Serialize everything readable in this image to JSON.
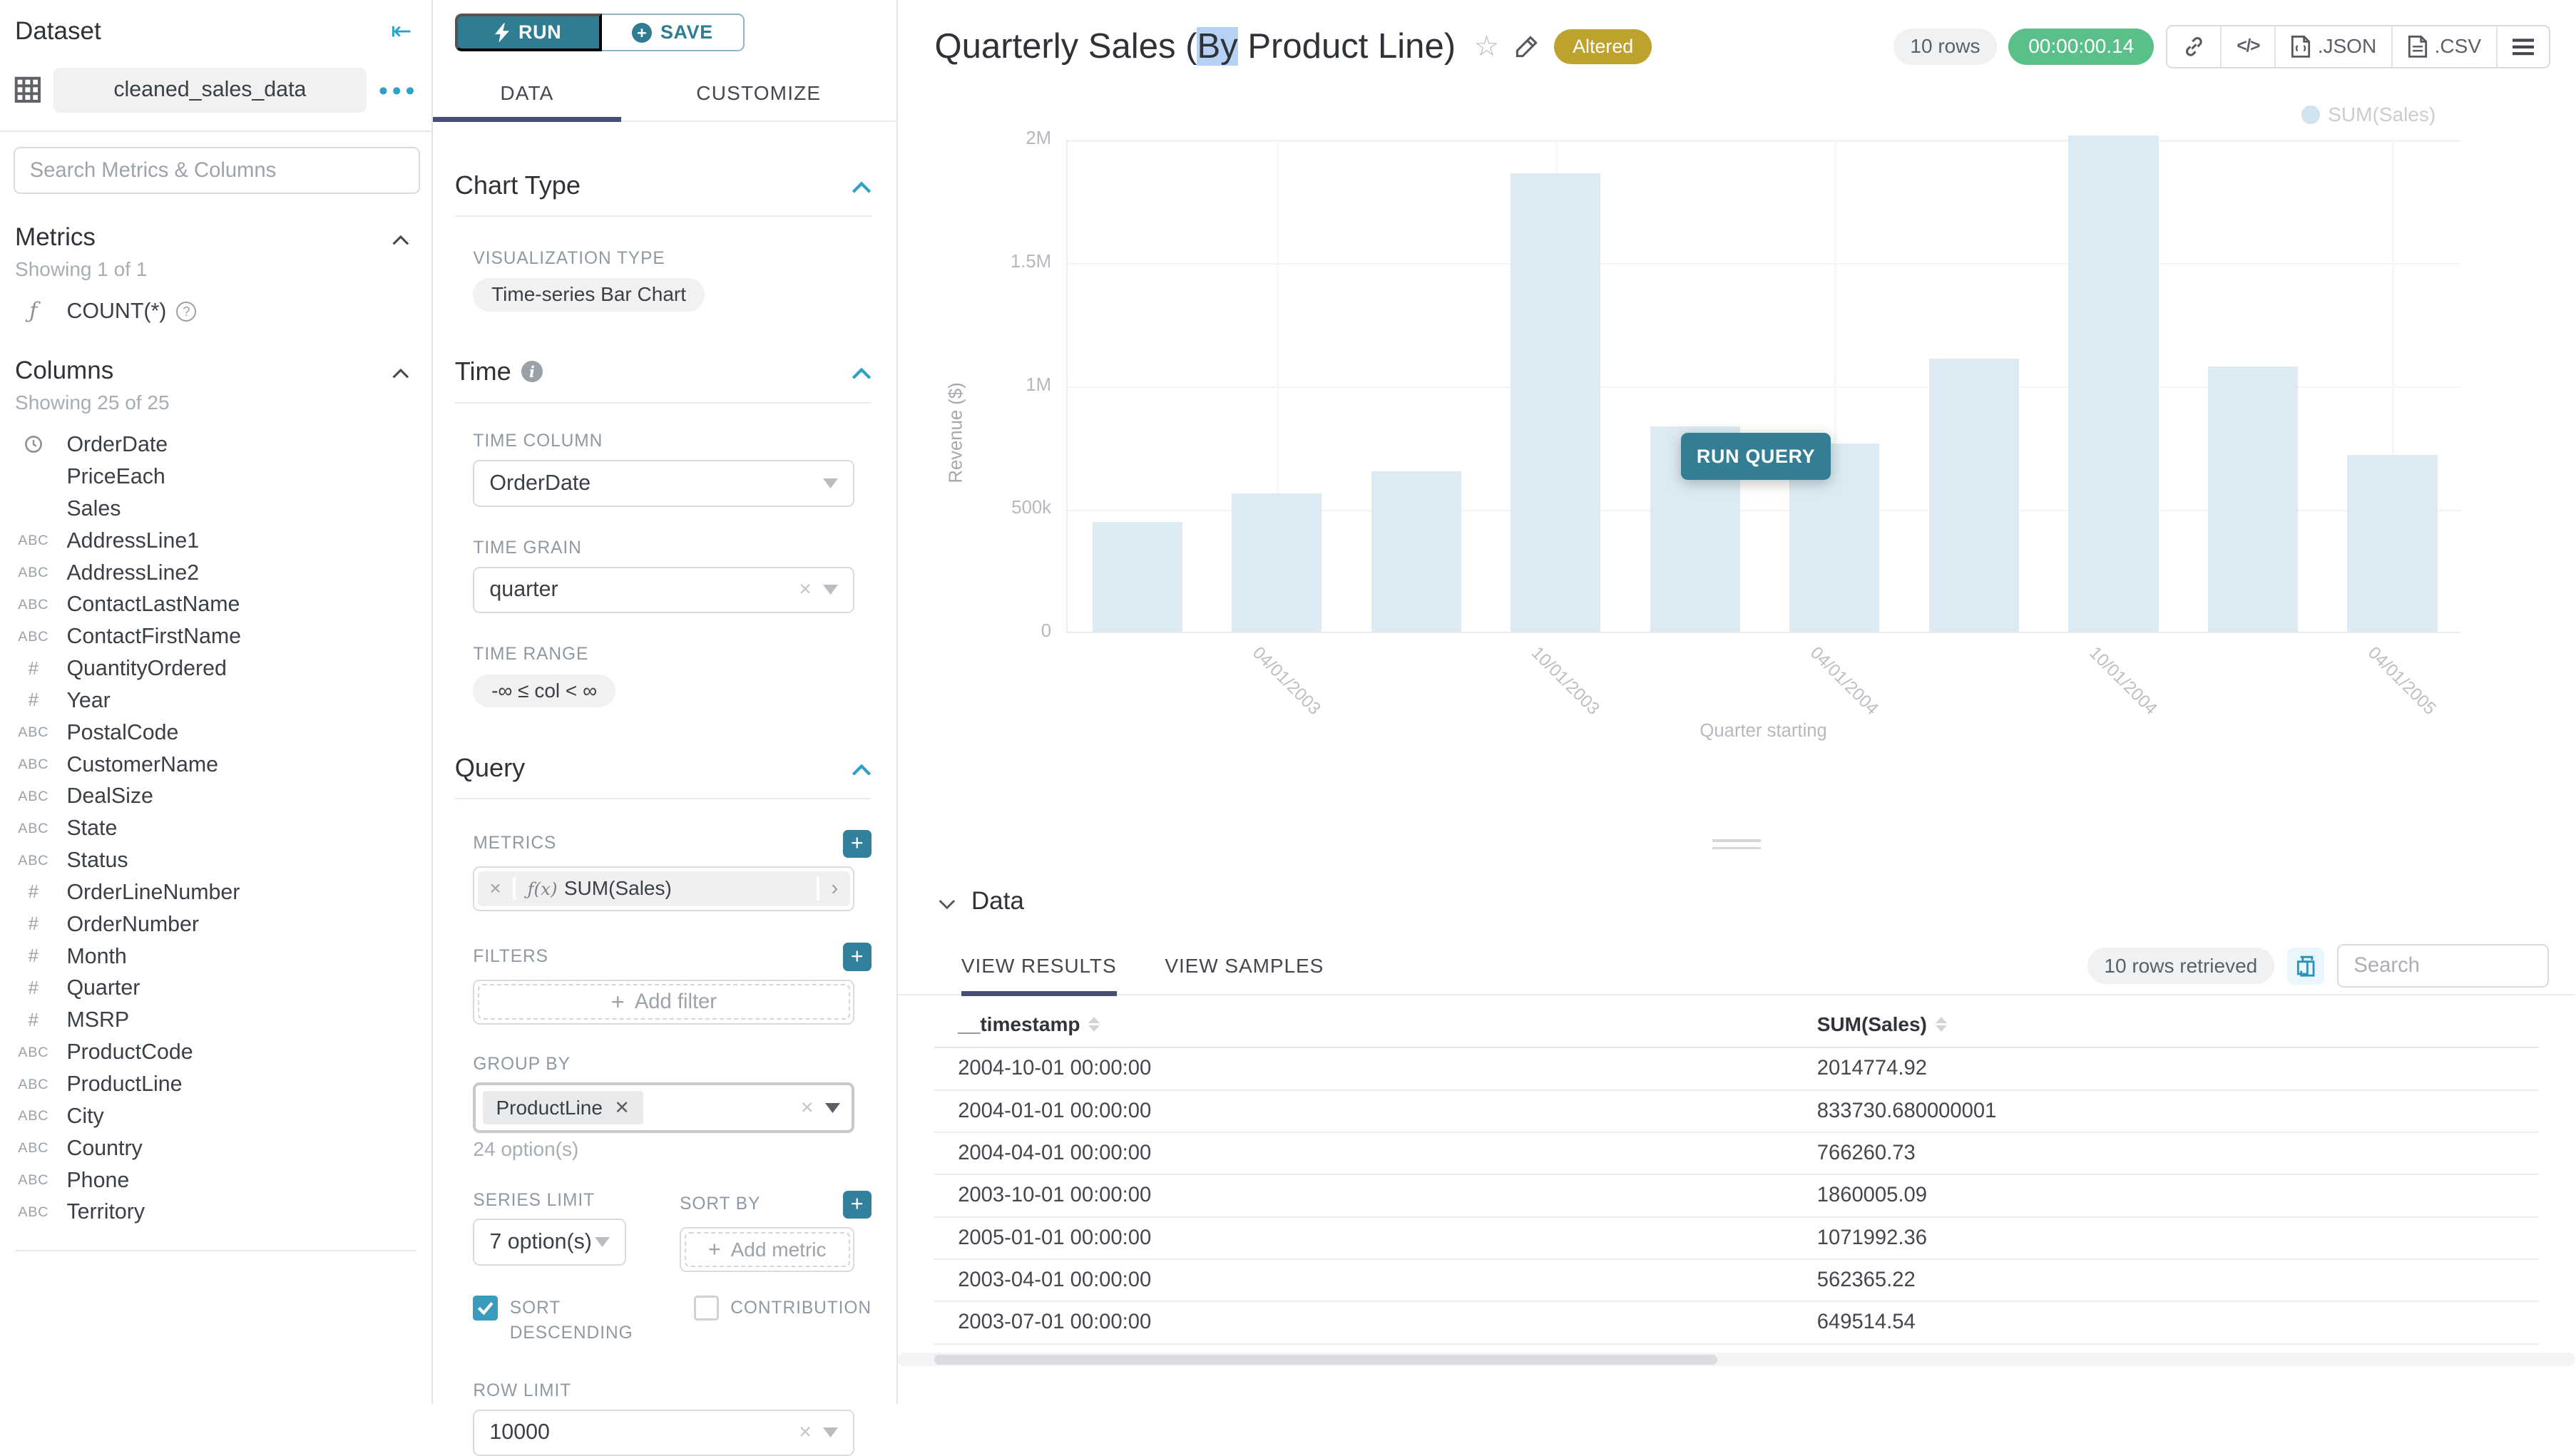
{
  "colors": {
    "primary_teal": "#2e7d93",
    "accent_teal": "#2da1c6",
    "tab_underline": "#474f75",
    "altered_badge": "#bda22e",
    "timer_green": "#5bbf8a",
    "bar_fill": "#dcebf3",
    "legend_dot": "#cfe4ef"
  },
  "dataset_panel": {
    "title": "Dataset",
    "dataset_name": "cleaned_sales_data",
    "search_placeholder": "Search Metrics & Columns",
    "metrics_title": "Metrics",
    "metrics_showing": "Showing 1 of 1",
    "metric_items": [
      {
        "icon": "function",
        "label": "COUNT(*)"
      }
    ],
    "columns_title": "Columns",
    "columns_showing": "Showing 25 of 25",
    "column_items": [
      {
        "icon": "clock",
        "label": "OrderDate"
      },
      {
        "icon": "none",
        "label": "PriceEach"
      },
      {
        "icon": "none",
        "label": "Sales"
      },
      {
        "icon": "abc",
        "label": "AddressLine1"
      },
      {
        "icon": "abc",
        "label": "AddressLine2"
      },
      {
        "icon": "abc",
        "label": "ContactLastName"
      },
      {
        "icon": "abc",
        "label": "ContactFirstName"
      },
      {
        "icon": "num",
        "label": "QuantityOrdered"
      },
      {
        "icon": "num",
        "label": "Year"
      },
      {
        "icon": "abc",
        "label": "PostalCode"
      },
      {
        "icon": "abc",
        "label": "CustomerName"
      },
      {
        "icon": "abc",
        "label": "DealSize"
      },
      {
        "icon": "abc",
        "label": "State"
      },
      {
        "icon": "abc",
        "label": "Status"
      },
      {
        "icon": "num",
        "label": "OrderLineNumber"
      },
      {
        "icon": "num",
        "label": "OrderNumber"
      },
      {
        "icon": "num",
        "label": "Month"
      },
      {
        "icon": "num",
        "label": "Quarter"
      },
      {
        "icon": "num",
        "label": "MSRP"
      },
      {
        "icon": "abc",
        "label": "ProductCode"
      },
      {
        "icon": "abc",
        "label": "ProductLine"
      },
      {
        "icon": "abc",
        "label": "City"
      },
      {
        "icon": "abc",
        "label": "Country"
      },
      {
        "icon": "abc",
        "label": "Phone"
      },
      {
        "icon": "abc",
        "label": "Territory"
      }
    ]
  },
  "control_panel": {
    "run_label": "RUN",
    "save_label": "SAVE",
    "tab_data": "DATA",
    "tab_customize": "CUSTOMIZE",
    "chart_type_title": "Chart Type",
    "viz_type_label": "VISUALIZATION TYPE",
    "viz_type_value": "Time-series Bar Chart",
    "time_title": "Time",
    "time_column_label": "TIME COLUMN",
    "time_column_value": "OrderDate",
    "time_grain_label": "TIME GRAIN",
    "time_grain_value": "quarter",
    "time_range_label": "TIME RANGE",
    "time_range_value": "-∞ ≤ col < ∞",
    "query_title": "Query",
    "metrics_label": "METRICS",
    "metric_fx": "ƒ(x)",
    "metric_value": "SUM(Sales)",
    "filters_label": "FILTERS",
    "add_filter_label": "Add filter",
    "group_by_label": "GROUP BY",
    "group_by_tag": "ProductLine",
    "group_by_hint": "24 option(s)",
    "series_limit_label": "SERIES LIMIT",
    "series_limit_value": "7 option(s)",
    "sort_by_label": "SORT BY",
    "add_metric_label": "Add metric",
    "sort_descending_label": "SORT DESCENDING",
    "contribution_label": "CONTRIBUTION",
    "row_limit_label": "ROW LIMIT",
    "row_limit_value": "10000"
  },
  "header": {
    "title_prefix": "Quarterly Sales (",
    "title_selected": "By",
    "title_suffix": " Product Line)",
    "altered_badge": "Altered",
    "rows_pill": "10 rows",
    "timer": "00:00:00.14",
    "export_json": ".JSON",
    "export_csv": ".CSV"
  },
  "chart_data": {
    "type": "bar",
    "title": "Quarterly Sales (By Product Line)",
    "x": [
      "2003-01-01",
      "2003-04-01",
      "2003-07-01",
      "2003-10-01",
      "2004-01-01",
      "2004-04-01",
      "2004-07-01",
      "2004-10-01",
      "2005-01-01",
      "2005-04-01"
    ],
    "series": [
      {
        "name": "SUM(Sales)",
        "values": [
          445095,
          562365.22,
          649514.54,
          1860005.09,
          833730.68,
          766260.73,
          1109396,
          2014774.92,
          1071992.36,
          719494
        ]
      }
    ],
    "xlabel": "Quarter starting",
    "ylabel": "Revenue ($)",
    "ylim": [
      0,
      2000000
    ],
    "ytick_labels": [
      "0",
      "500k",
      "1M",
      "1.5M",
      "2M"
    ],
    "xtick_labels": [
      "04/01/2003",
      "10/01/2003",
      "04/01/2004",
      "10/01/2004",
      "04/01/2005"
    ],
    "legend": [
      "SUM(Sales)"
    ],
    "legend_position": "top-right",
    "grid": true,
    "bar_color": "#dcebf3",
    "run_query_label": "RUN QUERY"
  },
  "data_panel": {
    "title": "Data",
    "tab_results": "VIEW RESULTS",
    "tab_samples": "VIEW SAMPLES",
    "rows_retrieved": "10 rows retrieved",
    "search_placeholder": "Search",
    "columns": [
      "__timestamp",
      "SUM(Sales)"
    ],
    "rows": [
      [
        "2004-10-01 00:00:00",
        "2014774.92"
      ],
      [
        "2004-01-01 00:00:00",
        "833730.680000001"
      ],
      [
        "2004-04-01 00:00:00",
        "766260.73"
      ],
      [
        "2003-10-01 00:00:00",
        "1860005.09"
      ],
      [
        "2005-01-01 00:00:00",
        "1071992.36"
      ],
      [
        "2003-04-01 00:00:00",
        "562365.22"
      ],
      [
        "2003-07-01 00:00:00",
        "649514.54"
      ]
    ]
  }
}
